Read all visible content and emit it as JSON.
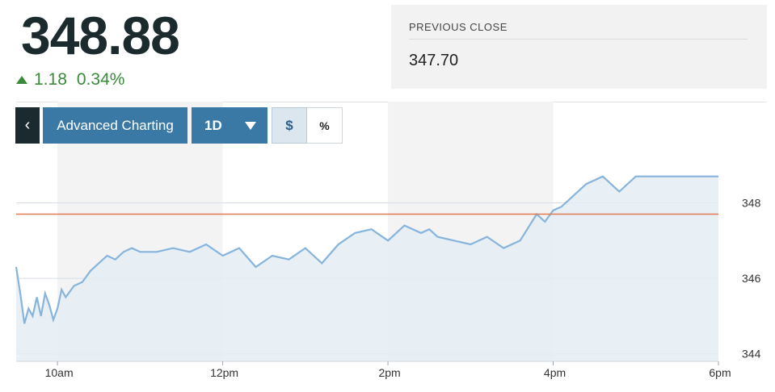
{
  "quote": {
    "price": "348.88",
    "change": "1.18",
    "change_pct": "0.34%",
    "direction": "up",
    "up_color": "#3b8a3b"
  },
  "previous_close": {
    "label": "PREVIOUS CLOSE",
    "value": "347.70"
  },
  "toolbar": {
    "back_label": "‹",
    "advanced_label": "Advanced Charting",
    "period_label": "1D",
    "dollar_label": "$",
    "percent_label": "%",
    "active_mode": "dollar"
  },
  "chart_data": {
    "type": "area",
    "x_ticks": [
      "10am",
      "12pm",
      "2pm",
      "4pm",
      "6pm"
    ],
    "y_ticks": [
      344,
      346,
      348
    ],
    "ylim": [
      343.8,
      349.4
    ],
    "xlim": [
      9.5,
      18
    ],
    "reference_line": {
      "value": 347.7,
      "color": "#e07a52"
    },
    "line_color": "#86b4dc",
    "fill_color": "#e4edf4",
    "shaded_bands": [
      [
        10,
        12
      ],
      [
        14,
        16
      ]
    ],
    "series": [
      {
        "x": [
          9.5,
          9.55,
          9.6,
          9.65,
          9.7,
          9.75,
          9.8,
          9.85,
          9.9,
          9.95,
          10.0,
          10.05,
          10.1,
          10.2,
          10.3,
          10.4,
          10.5,
          10.6,
          10.7,
          10.8,
          10.9,
          11.0,
          11.2,
          11.4,
          11.6,
          11.8,
          12.0,
          12.2,
          12.4,
          12.6,
          12.8,
          13.0,
          13.2,
          13.4,
          13.6,
          13.8,
          14.0,
          14.2,
          14.4,
          14.5,
          14.6,
          14.8,
          15.0,
          15.2,
          15.4,
          15.6,
          15.8,
          15.9,
          16.0,
          16.1,
          16.2,
          16.4,
          16.6,
          16.8,
          17.0,
          17.2,
          17.4,
          17.6,
          17.8,
          18.0
        ],
        "y": [
          346.3,
          345.6,
          344.8,
          345.2,
          345.0,
          345.5,
          345.0,
          345.6,
          345.3,
          344.9,
          345.2,
          345.7,
          345.5,
          345.8,
          345.9,
          346.2,
          346.4,
          346.6,
          346.5,
          346.7,
          346.8,
          346.7,
          346.7,
          346.8,
          346.7,
          346.9,
          346.6,
          346.8,
          346.3,
          346.6,
          346.5,
          346.8,
          346.4,
          346.9,
          347.2,
          347.3,
          347.0,
          347.4,
          347.2,
          347.3,
          347.1,
          347.0,
          346.9,
          347.1,
          346.8,
          347.0,
          347.7,
          347.5,
          347.8,
          347.9,
          348.1,
          348.5,
          348.7,
          348.3,
          348.7,
          348.7,
          348.7,
          348.7,
          348.7,
          348.7
        ]
      }
    ]
  }
}
